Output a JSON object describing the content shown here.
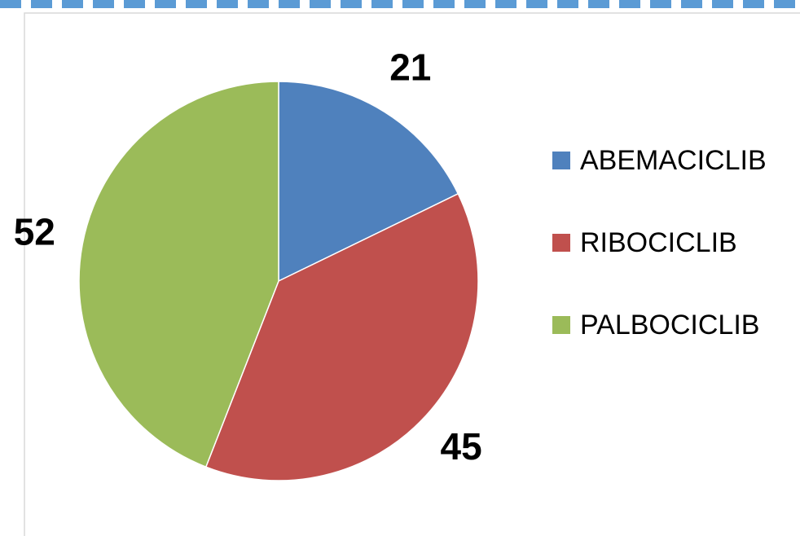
{
  "chart_data": {
    "type": "pie",
    "categories": [
      "ABEMACICLIB",
      "RIBOCICLIB",
      "PALBOCICLIB"
    ],
    "values": [
      21,
      45,
      52
    ],
    "colors": [
      "#4f81bd",
      "#c0504d",
      "#9bbb59"
    ],
    "legend": "right"
  }
}
